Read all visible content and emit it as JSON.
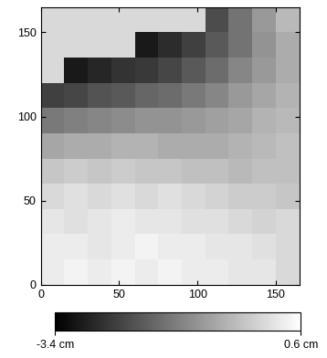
{
  "chart_data": {
    "type": "heatmap",
    "x_edges": [
      0,
      15,
      30,
      45,
      60,
      75,
      90,
      105,
      120,
      135,
      150,
      165
    ],
    "y_edges": [
      0,
      15,
      30,
      45,
      60,
      75,
      90,
      105,
      120,
      135,
      150,
      165
    ],
    "cells": [
      [
        0.3,
        0.4,
        0.3,
        0.4,
        0.3,
        0.4,
        0.3,
        0.3,
        0.2,
        0.2,
        null
      ],
      [
        0.3,
        0.3,
        0.2,
        0.3,
        0.4,
        0.3,
        0.3,
        0.2,
        0.2,
        0.1,
        null
      ],
      [
        0.2,
        0.1,
        0.2,
        0.3,
        0.2,
        0.2,
        0.1,
        0.1,
        0.0,
        -0.1,
        null
      ],
      [
        0.0,
        0.1,
        0.0,
        0.1,
        0.0,
        0.1,
        0.0,
        -0.1,
        -0.2,
        -0.2,
        -0.3
      ],
      [
        -0.3,
        -0.2,
        -0.3,
        -0.2,
        -0.3,
        -0.3,
        -0.4,
        -0.4,
        -0.5,
        -0.4,
        -0.4
      ],
      [
        -0.8,
        -0.7,
        -0.7,
        -0.6,
        -0.6,
        -0.7,
        -0.7,
        -0.7,
        -0.6,
        -0.5,
        -0.4
      ],
      [
        -1.5,
        -1.4,
        -1.3,
        -1.2,
        -1.1,
        -1.1,
        -1.0,
        -0.9,
        -0.8,
        -0.6,
        -0.5
      ],
      [
        -2.4,
        -2.3,
        -2.1,
        -2.0,
        -1.8,
        -1.7,
        -1.5,
        -1.3,
        -1.0,
        -0.8,
        -0.6
      ],
      [
        null,
        -3.0,
        -2.8,
        -2.6,
        -2.5,
        -2.3,
        -2.0,
        -1.7,
        -1.3,
        -1.0,
        -0.7
      ],
      [
        null,
        null,
        null,
        null,
        -3.0,
        -2.7,
        -2.4,
        -2.0,
        -1.6,
        -1.1,
        -0.7
      ],
      [
        null,
        null,
        null,
        null,
        null,
        null,
        null,
        -2.2,
        -1.6,
        -1.0,
        -0.5
      ]
    ],
    "color": "gray",
    "xlim": [
      0,
      165
    ],
    "ylim": [
      0,
      165
    ],
    "xticks": [
      0,
      50,
      100,
      150
    ],
    "yticks": [
      0,
      50,
      100,
      150
    ],
    "colorbar_range": [
      -3.4,
      0.6
    ],
    "colorbar_ticks": [
      {
        "value": -3.4,
        "label": "-3.4 cm"
      },
      {
        "value": 0.6,
        "label": "0.6 cm"
      }
    ]
  }
}
